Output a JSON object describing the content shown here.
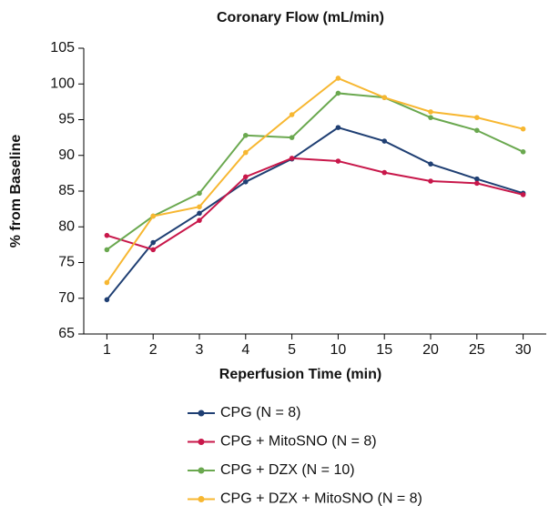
{
  "chart_data": {
    "type": "line",
    "title": "Coronary Flow (mL/min)",
    "x_label": "Reperfusion Time (min)",
    "y_label": "% from Baseline",
    "categories": [
      "1",
      "2",
      "3",
      "4",
      "5",
      "10",
      "15",
      "20",
      "25",
      "30"
    ],
    "ylim": [
      65,
      105
    ],
    "yticks": [
      65,
      70,
      75,
      80,
      85,
      90,
      95,
      100,
      105
    ],
    "grid": false,
    "legend": "bottom",
    "series": [
      {
        "name": "CPG (N = 8)",
        "color": "#1f3f73",
        "values": [
          69.8,
          77.8,
          81.9,
          86.3,
          89.5,
          93.9,
          92.0,
          88.8,
          86.7,
          84.7
        ]
      },
      {
        "name": "CPG + MitoSNO (N = 8)",
        "color": "#c8174a",
        "values": [
          78.8,
          76.8,
          80.9,
          87.0,
          89.6,
          89.2,
          87.6,
          86.4,
          86.1,
          84.5
        ]
      },
      {
        "name": "CPG + DZX (N = 10)",
        "color": "#6aa84f",
        "values": [
          76.8,
          81.5,
          84.7,
          92.8,
          92.5,
          98.7,
          98.1,
          95.3,
          93.5,
          90.5
        ]
      },
      {
        "name": "CPG + DZX + MitoSNO (N = 8)",
        "color": "#f7b731",
        "values": [
          72.2,
          81.5,
          82.8,
          90.4,
          95.7,
          100.8,
          98.1,
          96.1,
          95.3,
          93.7
        ]
      }
    ]
  }
}
